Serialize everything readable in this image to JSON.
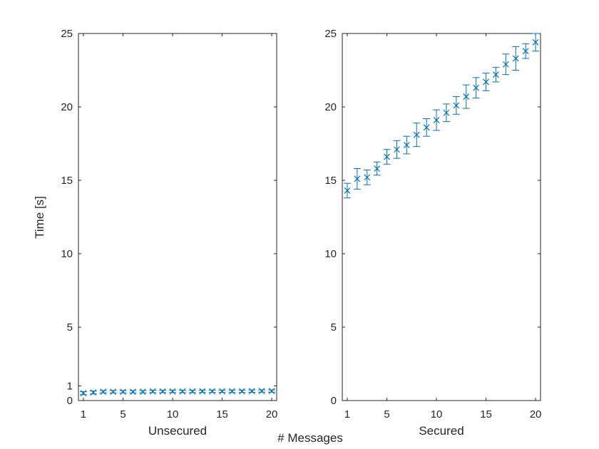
{
  "figure": {
    "ylabel": "Time [s]",
    "xlabel": "# Messages",
    "series_color": "#0072BD",
    "axis_color": "#262626"
  },
  "chart_data": [
    {
      "type": "scatter",
      "title": "",
      "xlabel": "Unsecured",
      "ylabel": "Time [s]",
      "xlim": [
        0.5,
        20.5
      ],
      "ylim": [
        0,
        25
      ],
      "xticks": [
        1,
        5,
        10,
        15,
        20
      ],
      "yticks": [
        0,
        1,
        5,
        10,
        15,
        20,
        25
      ],
      "marker": "x",
      "error_bars": true,
      "grid": false,
      "x": [
        1,
        2,
        3,
        4,
        5,
        6,
        7,
        8,
        9,
        10,
        11,
        12,
        13,
        14,
        15,
        16,
        17,
        18,
        19,
        20
      ],
      "series": [
        {
          "values": [
            0.5,
            0.55,
            0.6,
            0.6,
            0.6,
            0.6,
            0.6,
            0.62,
            0.62,
            0.62,
            0.62,
            0.62,
            0.63,
            0.63,
            0.63,
            0.63,
            0.63,
            0.64,
            0.65,
            0.65
          ],
          "err": [
            0.1,
            0.1,
            0.08,
            0.08,
            0.08,
            0.08,
            0.08,
            0.08,
            0.08,
            0.08,
            0.08,
            0.08,
            0.08,
            0.08,
            0.08,
            0.08,
            0.08,
            0.08,
            0.08,
            0.08
          ]
        }
      ]
    },
    {
      "type": "scatter",
      "title": "",
      "xlabel": "Secured",
      "ylabel": "",
      "xlim": [
        0.5,
        20.5
      ],
      "ylim": [
        0,
        25
      ],
      "xticks": [
        1,
        5,
        10,
        15,
        20
      ],
      "yticks": [
        0,
        5,
        10,
        15,
        20,
        25
      ],
      "marker": "x",
      "error_bars": true,
      "grid": false,
      "x": [
        1,
        2,
        3,
        4,
        5,
        6,
        7,
        8,
        9,
        10,
        11,
        12,
        13,
        14,
        15,
        16,
        17,
        18,
        19,
        20
      ],
      "series": [
        {
          "values": [
            14.3,
            15.1,
            15.2,
            15.8,
            16.6,
            17.1,
            17.4,
            18.1,
            18.6,
            19.1,
            19.6,
            20.1,
            20.7,
            21.3,
            21.7,
            22.2,
            22.9,
            23.3,
            23.8,
            24.4
          ],
          "err": [
            0.5,
            0.7,
            0.5,
            0.45,
            0.5,
            0.6,
            0.6,
            0.8,
            0.6,
            0.7,
            0.6,
            0.6,
            0.8,
            0.7,
            0.6,
            0.5,
            0.7,
            0.8,
            0.5,
            0.6
          ]
        }
      ]
    }
  ]
}
